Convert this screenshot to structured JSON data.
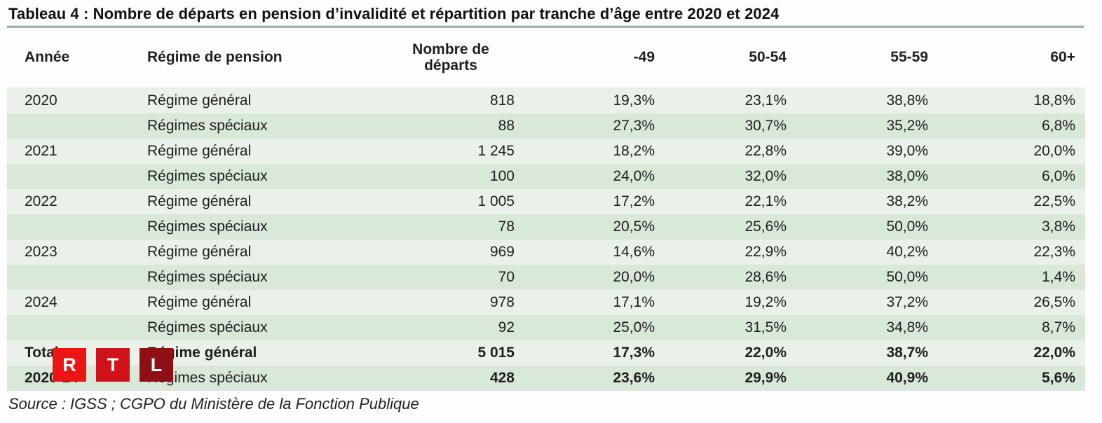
{
  "title": "Tableau 4 : Nombre de départs en pension d’invalidité et répartition par tranche d’âge entre 2020 et 2024",
  "source": "Source : IGSS ; CGPO du Ministère de la Fonction Publique",
  "colors": {
    "row_light": "#eaf1e8",
    "row_dark": "#d9e8d8",
    "title_rule": "#9fb5a7",
    "text": "#1f1f1f",
    "rtl_r": "#ee1414",
    "rtl_t": "#cf1318",
    "rtl_l": "#8e1014"
  },
  "watermark": {
    "name": "RTL logo",
    "letters": [
      "R",
      "T",
      "L"
    ]
  },
  "table": {
    "headers": {
      "annee": "Année",
      "regime": "Régime de pension",
      "departs_line1": "Nombre de",
      "departs_line2": "départs",
      "ages": [
        "-49",
        "50-54",
        "55-59",
        "60+"
      ]
    },
    "rows": [
      {
        "year": "2020",
        "regime": "Régime général",
        "departs": "818",
        "pcts": [
          "19,3%",
          "23,1%",
          "38,8%",
          "18,8%"
        ],
        "bold": false,
        "regime_bold": false,
        "shade": "light"
      },
      {
        "year": "",
        "regime": "Régimes spéciaux",
        "departs": "88",
        "pcts": [
          "27,3%",
          "30,7%",
          "35,2%",
          "6,8%"
        ],
        "bold": false,
        "regime_bold": false,
        "shade": "dark"
      },
      {
        "year": "2021",
        "regime": "Régime général",
        "departs": "1 245",
        "pcts": [
          "18,2%",
          "22,8%",
          "39,0%",
          "20,0%"
        ],
        "bold": false,
        "regime_bold": false,
        "shade": "light"
      },
      {
        "year": "",
        "regime": "Régimes spéciaux",
        "departs": "100",
        "pcts": [
          "24,0%",
          "32,0%",
          "38,0%",
          "6,0%"
        ],
        "bold": false,
        "regime_bold": false,
        "shade": "dark"
      },
      {
        "year": "2022",
        "regime": "Régime général",
        "departs": "1 005",
        "pcts": [
          "17,2%",
          "22,1%",
          "38,2%",
          "22,5%"
        ],
        "bold": false,
        "regime_bold": false,
        "shade": "light"
      },
      {
        "year": "",
        "regime": "Régimes spéciaux",
        "departs": "78",
        "pcts": [
          "20,5%",
          "25,6%",
          "50,0%",
          "3,8%"
        ],
        "bold": false,
        "regime_bold": false,
        "shade": "dark"
      },
      {
        "year": "2023",
        "regime": "Régime général",
        "departs": "969",
        "pcts": [
          "14,6%",
          "22,9%",
          "40,2%",
          "22,3%"
        ],
        "bold": false,
        "regime_bold": false,
        "shade": "light"
      },
      {
        "year": "",
        "regime": "Régimes spéciaux",
        "departs": "70",
        "pcts": [
          "20,0%",
          "28,6%",
          "50,0%",
          "1,4%"
        ],
        "bold": false,
        "regime_bold": false,
        "shade": "dark"
      },
      {
        "year": "2024",
        "regime": "Régime général",
        "departs": "978",
        "pcts": [
          "17,1%",
          "19,2%",
          "37,2%",
          "26,5%"
        ],
        "bold": false,
        "regime_bold": false,
        "shade": "light"
      },
      {
        "year": "",
        "regime": "Régimes spéciaux",
        "departs": "92",
        "pcts": [
          "25,0%",
          "31,5%",
          "34,8%",
          "8,7%"
        ],
        "bold": false,
        "regime_bold": false,
        "shade": "dark"
      },
      {
        "year": "Total",
        "regime": "Régime général",
        "departs": "5 015",
        "pcts": [
          "17,3%",
          "22,0%",
          "38,7%",
          "22,0%"
        ],
        "bold": true,
        "regime_bold": true,
        "shade": "light"
      },
      {
        "year": "2020-24",
        "regime": "Régimes spéciaux",
        "departs": "428",
        "pcts": [
          "23,6%",
          "29,9%",
          "40,9%",
          "5,6%"
        ],
        "bold": true,
        "regime_bold": false,
        "shade": "dark"
      }
    ]
  },
  "chart_data": {
    "type": "table",
    "title": "Tableau 4 : Nombre de départs en pension d’invalidité et répartition par tranche d’âge entre 2020 et 2024",
    "columns": [
      "Année",
      "Régime de pension",
      "Nombre de départs",
      "-49",
      "50-54",
      "55-59",
      "60+"
    ],
    "rows": [
      [
        "2020",
        "Régime général",
        818,
        "19,3%",
        "23,1%",
        "38,8%",
        "18,8%"
      ],
      [
        "2020",
        "Régimes spéciaux",
        88,
        "27,3%",
        "30,7%",
        "35,2%",
        "6,8%"
      ],
      [
        "2021",
        "Régime général",
        1245,
        "18,2%",
        "22,8%",
        "39,0%",
        "20,0%"
      ],
      [
        "2021",
        "Régimes spéciaux",
        100,
        "24,0%",
        "32,0%",
        "38,0%",
        "6,0%"
      ],
      [
        "2022",
        "Régime général",
        1005,
        "17,2%",
        "22,1%",
        "38,2%",
        "22,5%"
      ],
      [
        "2022",
        "Régimes spéciaux",
        78,
        "20,5%",
        "25,6%",
        "50,0%",
        "3,8%"
      ],
      [
        "2023",
        "Régime général",
        969,
        "14,6%",
        "22,9%",
        "40,2%",
        "22,3%"
      ],
      [
        "2023",
        "Régimes spéciaux",
        70,
        "20,0%",
        "28,6%",
        "50,0%",
        "1,4%"
      ],
      [
        "2024",
        "Régime général",
        978,
        "17,1%",
        "19,2%",
        "37,2%",
        "26,5%"
      ],
      [
        "2024",
        "Régimes spéciaux",
        92,
        "25,0%",
        "31,5%",
        "34,8%",
        "8,7%"
      ],
      [
        "Total 2020-24",
        "Régime général",
        5015,
        "17,3%",
        "22,0%",
        "38,7%",
        "22,0%"
      ],
      [
        "Total 2020-24",
        "Régimes spéciaux",
        428,
        "23,6%",
        "29,9%",
        "40,9%",
        "5,6%"
      ]
    ]
  }
}
